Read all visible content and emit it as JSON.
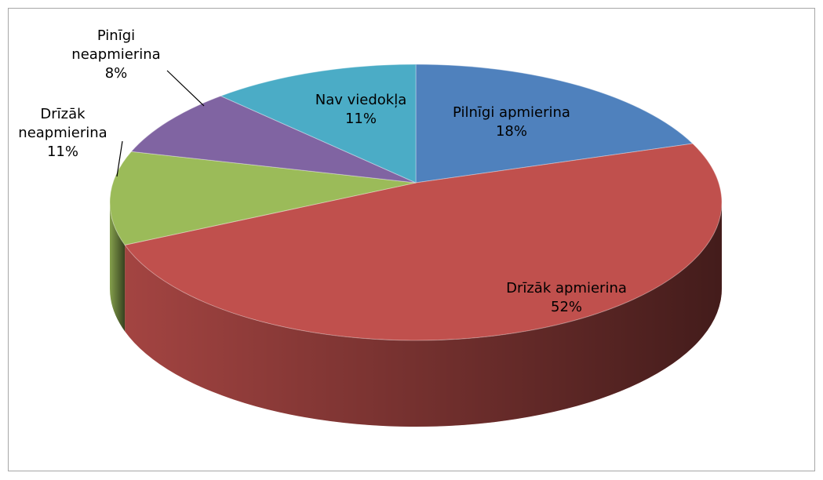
{
  "chart_data": {
    "type": "pie",
    "categories": [
      "Pilnīgi apmierina",
      "Drīzāk apmierina",
      "Drīzāk neapmierina",
      "Pinīgi neapmierina",
      "Nav viedokļa"
    ],
    "values": [
      18,
      52,
      11,
      8,
      11
    ],
    "value_labels": [
      "18%",
      "52%",
      "11%",
      "8%",
      "11%"
    ],
    "colors": [
      "#4f81bd",
      "#c0504d",
      "#9bbb59",
      "#8064a2",
      "#4bacc6"
    ]
  }
}
